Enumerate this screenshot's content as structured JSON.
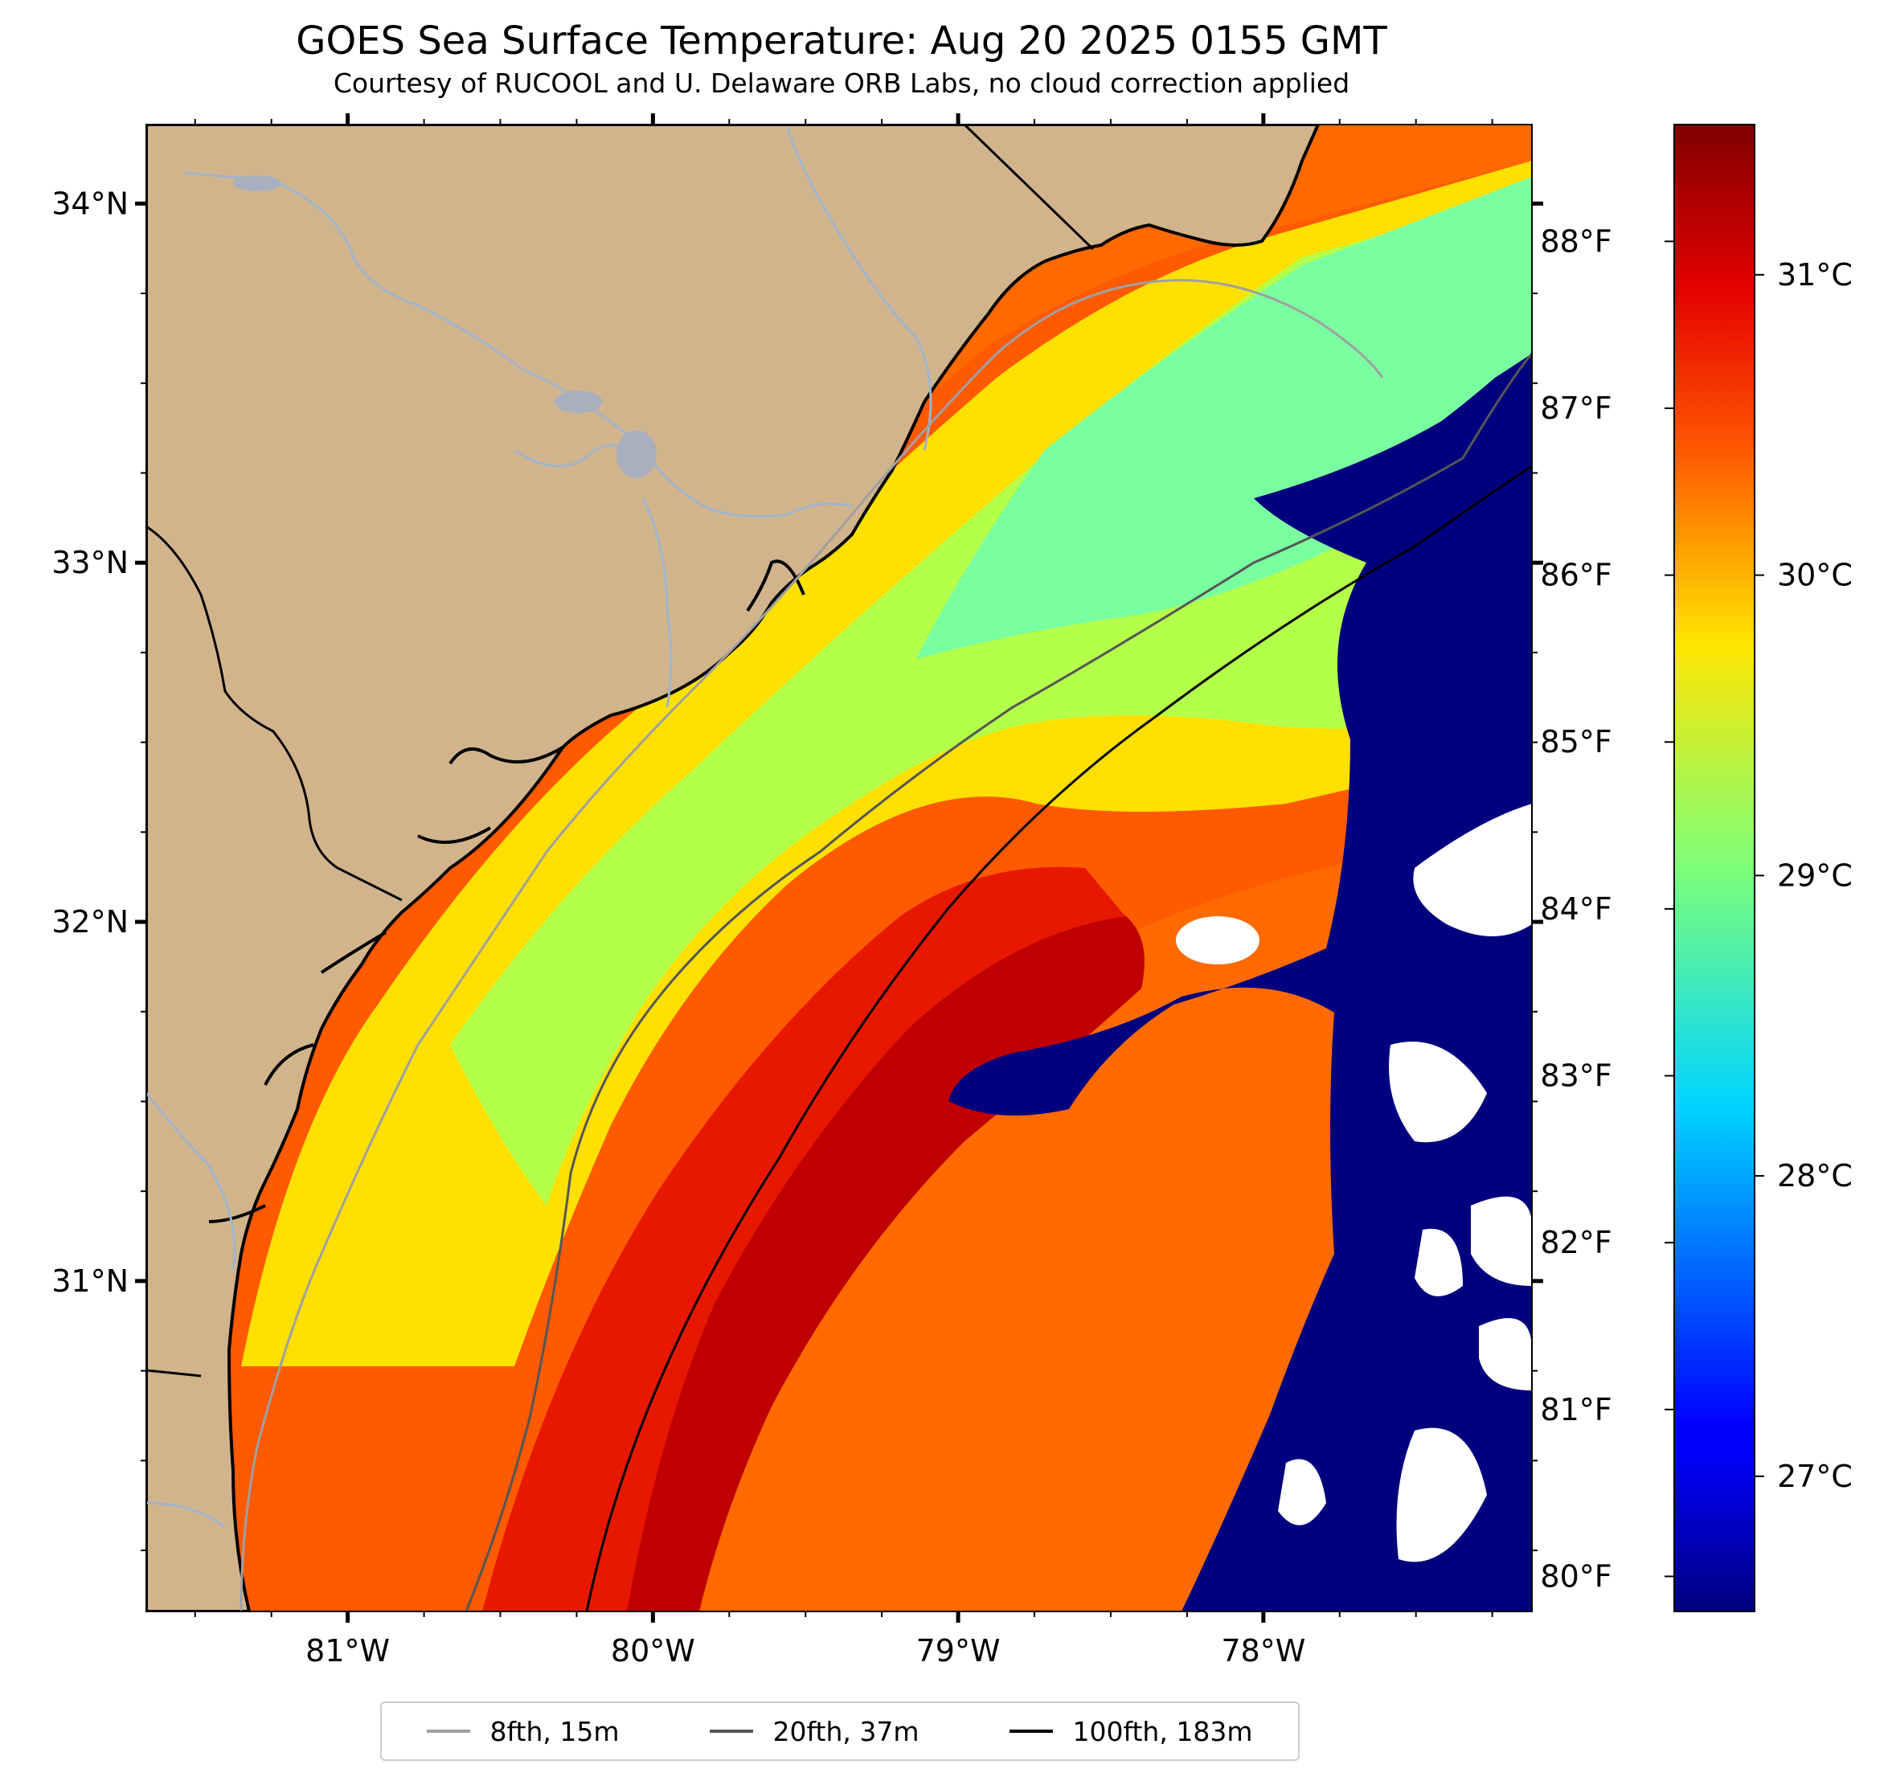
{
  "title": "GOES Sea Surface Temperature: Aug 20 2025 0155 GMT",
  "subtitle": "Courtesy of RUCOOL and U. Delaware ORB Labs, no cloud correction applied",
  "map": {
    "lon_range": [
      -81.66,
      -77.12
    ],
    "lat_range": [
      30.08,
      34.22
    ],
    "lon_ticks": [
      {
        "value": -81,
        "label": "81°W"
      },
      {
        "value": -80,
        "label": "80°W"
      },
      {
        "value": -79,
        "label": "79°W"
      },
      {
        "value": -78,
        "label": "78°W"
      }
    ],
    "lat_ticks": [
      {
        "value": 34,
        "label": "34°N"
      },
      {
        "value": 33,
        "label": "33°N"
      },
      {
        "value": 32,
        "label": "32°N"
      },
      {
        "value": 31,
        "label": "31°N"
      }
    ],
    "colors": {
      "land": "#d2b48c",
      "rivers": "#a0b4cc",
      "no_data": "#ffffff",
      "isobath_8fth": "#a0a0a0",
      "isobath_20fth": "#555555",
      "isobath_100fth": "#000000"
    }
  },
  "colorbar": {
    "colormap": "jet",
    "celsius_range": [
      26.55,
      31.5
    ],
    "celsius_ticks": [
      {
        "value": 31,
        "label": "31°C"
      },
      {
        "value": 30,
        "label": "30°C"
      },
      {
        "value": 29,
        "label": "29°C"
      },
      {
        "value": 28,
        "label": "28°C"
      },
      {
        "value": 27,
        "label": "27°C"
      }
    ],
    "fahrenheit_ticks": [
      {
        "value": 88,
        "label": "88°F"
      },
      {
        "value": 87,
        "label": "87°F"
      },
      {
        "value": 86,
        "label": "86°F"
      },
      {
        "value": 85,
        "label": "85°F"
      },
      {
        "value": 84,
        "label": "84°F"
      },
      {
        "value": 83,
        "label": "83°F"
      },
      {
        "value": 82,
        "label": "82°F"
      },
      {
        "value": 81,
        "label": "81°F"
      },
      {
        "value": 80,
        "label": "80°F"
      }
    ]
  },
  "legend": {
    "items": [
      {
        "label": "8fth, 15m",
        "color": "#a0a0a0"
      },
      {
        "label": "20fth, 37m",
        "color": "#555555"
      },
      {
        "label": "100fth, 183m",
        "color": "#000000"
      }
    ]
  }
}
